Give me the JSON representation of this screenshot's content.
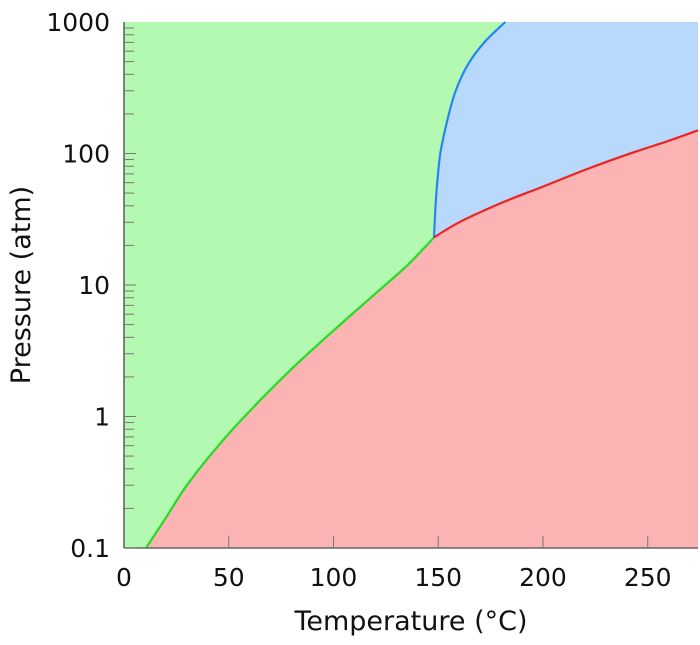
{
  "chart_data": {
    "type": "area",
    "title": "",
    "xlabel": "Temperature (°C)",
    "ylabel": "Pressure (atm)",
    "xscale": "linear",
    "yscale": "log",
    "xlim": [
      0,
      274
    ],
    "ylim": [
      0.1,
      1000
    ],
    "x_ticks": [
      0,
      50,
      100,
      150,
      200,
      250
    ],
    "x_tick_labels": [
      "0",
      "50",
      "100",
      "150",
      "200",
      "250"
    ],
    "y_ticks": [
      0.1,
      1,
      10,
      100,
      1000
    ],
    "y_tick_labels": [
      "0.1",
      "1",
      "10",
      "100",
      "1000"
    ],
    "grid": false,
    "legend": null,
    "regions": [
      {
        "name": "green-region",
        "color": "#b3f9b1",
        "description": "upper-left phase region"
      },
      {
        "name": "blue-region",
        "color": "#b8d9fb",
        "description": "upper-right phase region"
      },
      {
        "name": "red-region",
        "color": "#fbb3b3",
        "description": "lower-right phase region"
      }
    ],
    "triple_point": {
      "x": 148,
      "y": 23
    },
    "series": [
      {
        "name": "green-red boundary",
        "color": "#22dd22",
        "x": [
          10.5,
          20,
          30,
          45,
          60,
          80,
          100,
          120,
          135,
          148
        ],
        "y": [
          0.1,
          0.17,
          0.3,
          0.6,
          1.1,
          2.3,
          4.5,
          8.6,
          14,
          23
        ]
      },
      {
        "name": "green-blue boundary",
        "color": "#2288ee",
        "x": [
          148,
          148.5,
          149.5,
          151,
          154,
          158,
          164,
          172,
          182
        ],
        "y": [
          23,
          35,
          60,
          100,
          170,
          290,
          470,
          700,
          1000
        ]
      },
      {
        "name": "blue-red boundary",
        "color": "#ee2222",
        "x": [
          148,
          160,
          180,
          200,
          220,
          240,
          260,
          274
        ],
        "y": [
          23,
          30,
          42,
          56,
          75,
          98,
          125,
          150
        ]
      }
    ]
  }
}
